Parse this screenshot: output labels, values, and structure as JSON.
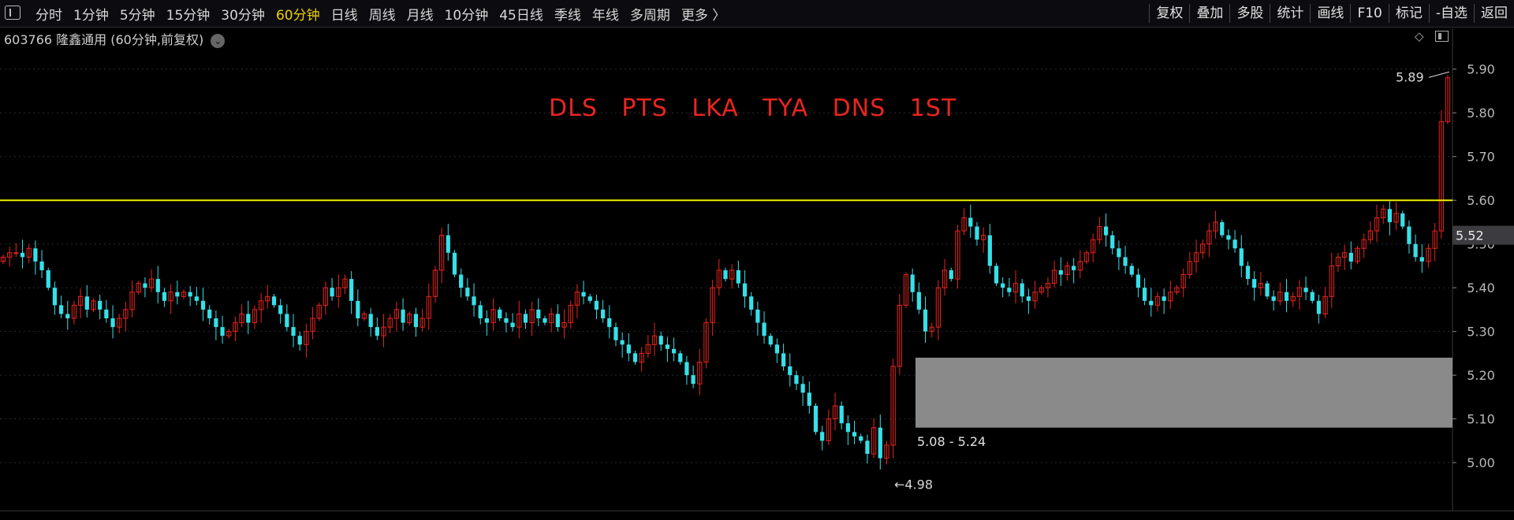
{
  "toolbar": {
    "periods": [
      "分时",
      "1分钟",
      "5分钟",
      "15分钟",
      "30分钟",
      "60分钟",
      "日线",
      "周线",
      "月线",
      "10分钟",
      "45日线",
      "季线",
      "年线",
      "多周期",
      "更多 〉"
    ],
    "active_period": "60分钟",
    "tools": [
      "复权",
      "叠加",
      "多股",
      "统计",
      "画线",
      "F10",
      "标记",
      "-自选",
      "返回"
    ]
  },
  "stock": {
    "title": "603766 隆鑫通用 (60分钟,前复权)",
    "dropdown": "⌄"
  },
  "annotation": "DLS PTS LKA TYA DNS 1ST",
  "colors": {
    "up": "#e8251e",
    "down": "#36e0e8",
    "support_line": "#f0f000",
    "zone": "#8a8a8a",
    "background": "#000000",
    "grid": "#2a2a38"
  },
  "chart_data": {
    "type": "candlestick",
    "title": "603766 隆鑫通用 (60分钟,前复权)",
    "ylim": [
      4.93,
      5.95
    ],
    "y_ticks": [
      "5.90",
      "5.80",
      "5.70",
      "5.60",
      "5.50",
      "5.40",
      "5.30",
      "5.20",
      "5.10",
      "5.00"
    ],
    "current_price": "5.52",
    "horizontal_line": 5.6,
    "zone": {
      "low": 5.08,
      "high": 5.24,
      "label": "5.08 - 5.24"
    },
    "markers": {
      "high_label": "5.89",
      "low_label": "←4.98"
    },
    "close_series": [
      5.47,
      5.48,
      5.48,
      5.47,
      5.49,
      5.46,
      5.44,
      5.4,
      5.36,
      5.34,
      5.33,
      5.36,
      5.38,
      5.35,
      5.37,
      5.35,
      5.33,
      5.31,
      5.33,
      5.35,
      5.39,
      5.41,
      5.4,
      5.42,
      5.39,
      5.37,
      5.39,
      5.38,
      5.39,
      5.38,
      5.37,
      5.35,
      5.33,
      5.31,
      5.29,
      5.3,
      5.32,
      5.34,
      5.32,
      5.35,
      5.37,
      5.38,
      5.36,
      5.34,
      5.31,
      5.29,
      5.27,
      5.3,
      5.33,
      5.36,
      5.4,
      5.38,
      5.4,
      5.42,
      5.37,
      5.33,
      5.34,
      5.31,
      5.29,
      5.31,
      5.33,
      5.35,
      5.32,
      5.34,
      5.31,
      5.33,
      5.38,
      5.44,
      5.52,
      5.48,
      5.43,
      5.4,
      5.38,
      5.36,
      5.33,
      5.32,
      5.35,
      5.33,
      5.32,
      5.31,
      5.34,
      5.32,
      5.35,
      5.33,
      5.32,
      5.34,
      5.31,
      5.32,
      5.36,
      5.39,
      5.38,
      5.37,
      5.35,
      5.33,
      5.31,
      5.28,
      5.27,
      5.25,
      5.23,
      5.25,
      5.27,
      5.29,
      5.27,
      5.26,
      5.25,
      5.23,
      5.2,
      5.18,
      5.23,
      5.32,
      5.4,
      5.44,
      5.42,
      5.44,
      5.41,
      5.38,
      5.35,
      5.32,
      5.29,
      5.27,
      5.25,
      5.22,
      5.2,
      5.18,
      5.16,
      5.13,
      5.07,
      5.05,
      5.1,
      5.13,
      5.09,
      5.07,
      5.06,
      5.05,
      5.02,
      5.08,
      5.01,
      5.04,
      5.22,
      5.36,
      5.43,
      5.39,
      5.35,
      5.3,
      5.31,
      5.4,
      5.44,
      5.42,
      5.53,
      5.56,
      5.54,
      5.51,
      5.52,
      5.45,
      5.41,
      5.4,
      5.39,
      5.41,
      5.38,
      5.37,
      5.39,
      5.4,
      5.41,
      5.44,
      5.43,
      5.45,
      5.44,
      5.46,
      5.48,
      5.51,
      5.54,
      5.52,
      5.49,
      5.47,
      5.45,
      5.43,
      5.4,
      5.37,
      5.36,
      5.38,
      5.37,
      5.39,
      5.4,
      5.43,
      5.46,
      5.48,
      5.5,
      5.53,
      5.55,
      5.52,
      5.51,
      5.49,
      5.45,
      5.42,
      5.4,
      5.41,
      5.38,
      5.37,
      5.39,
      5.37,
      5.38,
      5.4,
      5.39,
      5.37,
      5.34,
      5.38,
      5.45,
      5.47,
      5.48,
      5.46,
      5.49,
      5.51,
      5.53,
      5.56,
      5.58,
      5.55,
      5.57,
      5.54,
      5.5,
      5.47,
      5.46,
      5.49,
      5.53,
      5.78,
      5.88
    ]
  }
}
